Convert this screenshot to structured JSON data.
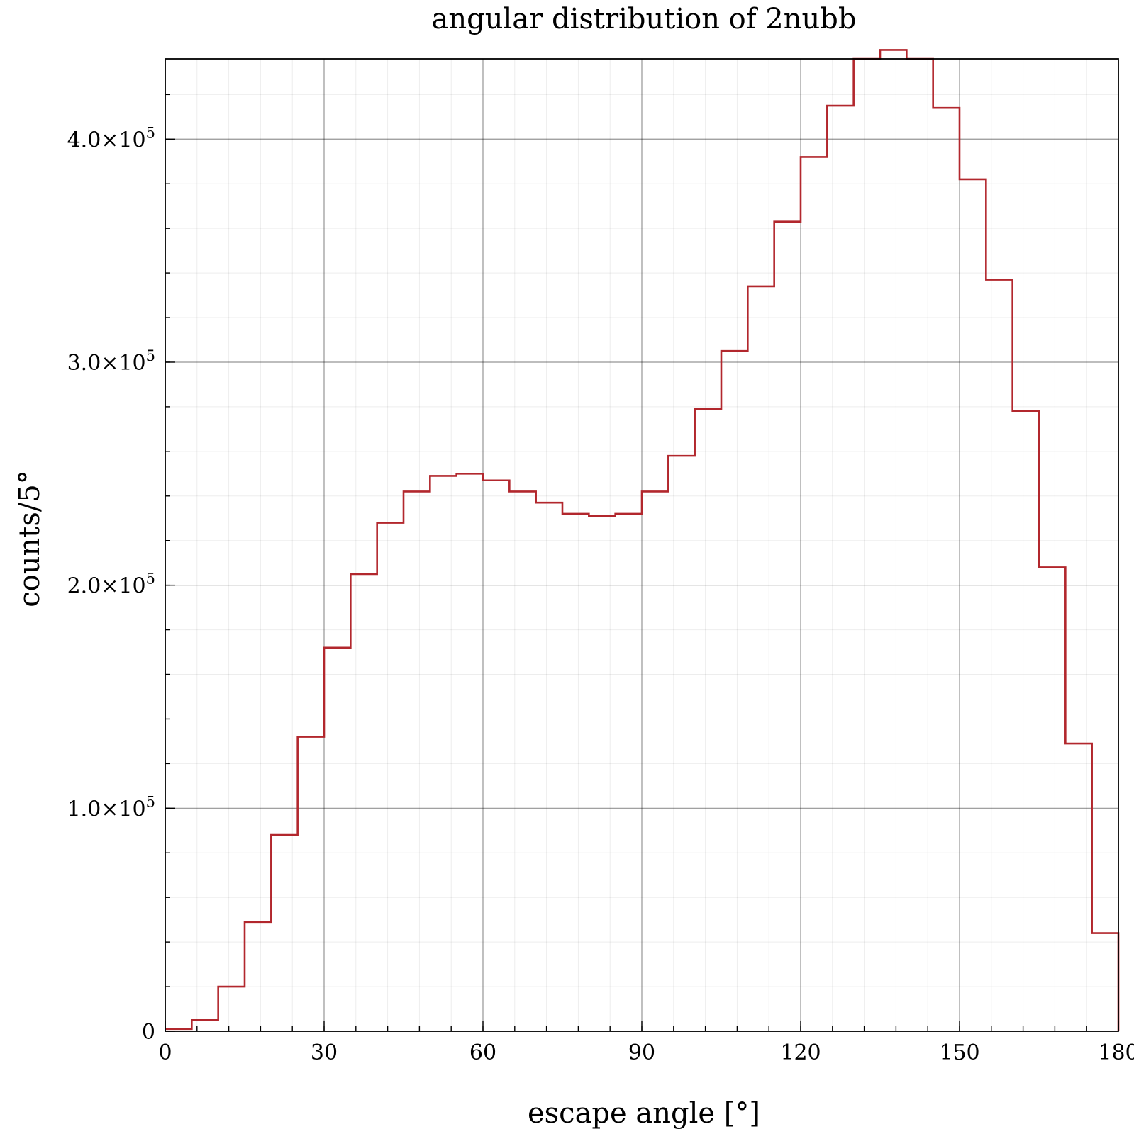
{
  "chart_data": {
    "type": "histogram",
    "title": "angular distribution of 2nubb",
    "xlabel": "escape angle [°]",
    "ylabel": "counts/5°",
    "xlim": [
      0,
      180
    ],
    "ylim": [
      0,
      436000
    ],
    "bin_width": 5,
    "bin_edges": [
      0,
      5,
      10,
      15,
      20,
      25,
      30,
      35,
      40,
      45,
      50,
      55,
      60,
      65,
      70,
      75,
      80,
      85,
      90,
      95,
      100,
      105,
      110,
      115,
      120,
      125,
      130,
      135,
      140,
      145,
      150,
      155,
      160,
      165,
      170,
      175,
      180
    ],
    "values": [
      1000,
      5000,
      20000,
      49000,
      88000,
      132000,
      172000,
      205000,
      228000,
      242000,
      249000,
      250000,
      247000,
      242000,
      237000,
      232000,
      231000,
      232000,
      242000,
      258000,
      279000,
      305000,
      334000,
      363000,
      392000,
      415000,
      436000,
      440000,
      436000,
      414000,
      382000,
      337000,
      278000,
      208000,
      129000,
      44000
    ],
    "x_ticks": [
      {
        "value": 0,
        "label": "0"
      },
      {
        "value": 30,
        "label": "30"
      },
      {
        "value": 60,
        "label": "60"
      },
      {
        "value": 90,
        "label": "90"
      },
      {
        "value": 120,
        "label": "120"
      },
      {
        "value": 150,
        "label": "150"
      },
      {
        "value": 180,
        "label": "180"
      }
    ],
    "y_ticks": [
      {
        "value": 0,
        "mantissa": "0",
        "exponent": ""
      },
      {
        "value": 100000,
        "mantissa": "1.0×10",
        "exponent": "5"
      },
      {
        "value": 200000,
        "mantissa": "2.0×10",
        "exponent": "5"
      },
      {
        "value": 300000,
        "mantissa": "3.0×10",
        "exponent": "5"
      },
      {
        "value": 400000,
        "mantissa": "4.0×10",
        "exponent": "5"
      }
    ],
    "x_minor_step": 6,
    "y_minor_step": 20000,
    "grid": true,
    "legend": "none",
    "line_color": "#b2272d"
  }
}
